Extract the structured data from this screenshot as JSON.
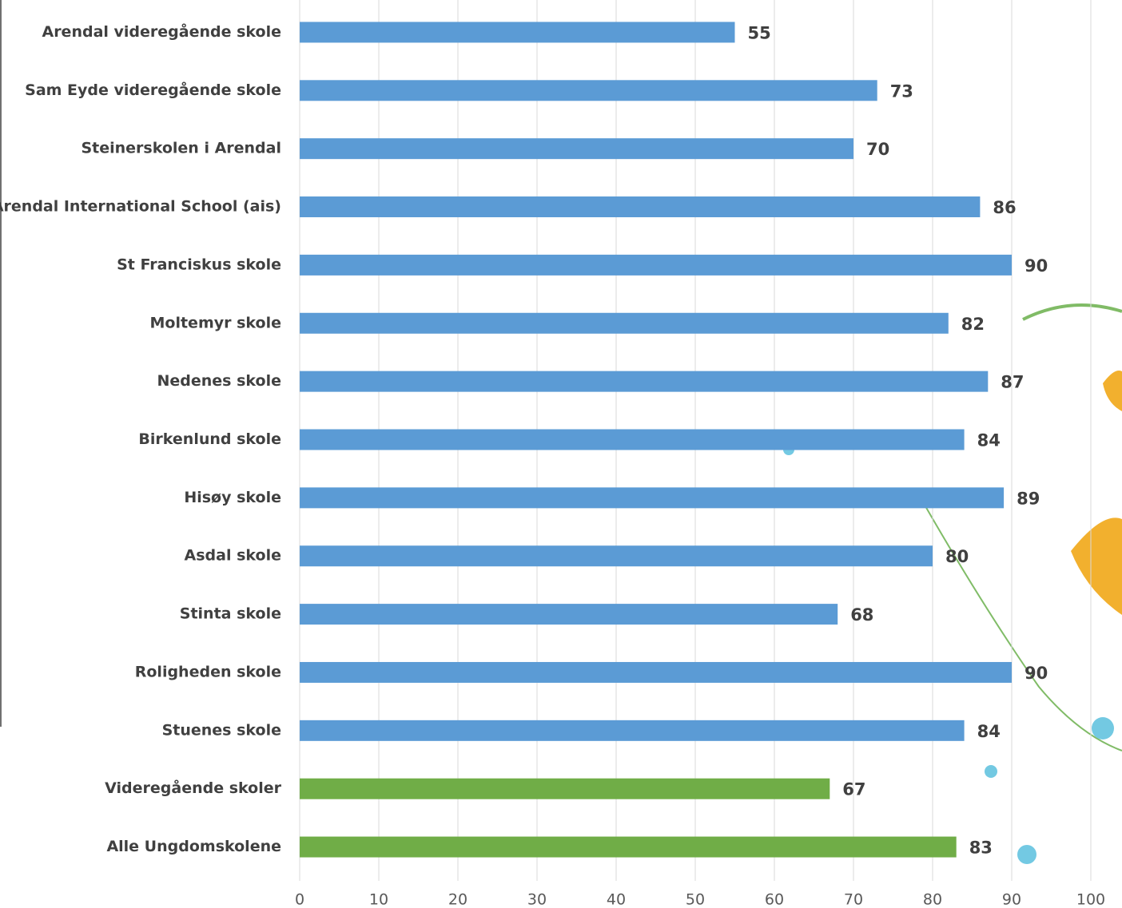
{
  "chart_data": {
    "type": "bar",
    "orientation": "horizontal",
    "categories": [
      "Arendal videregående skole",
      "Sam Eyde videregående skole",
      "Steinerskolen i Arendal",
      "Arendal International School (ais)",
      "St Franciskus skole",
      "Moltemyr skole",
      "Nedenes skole",
      "Birkenlund skole",
      "Hisøy skole",
      "Asdal skole",
      "Stinta skole",
      "Roligheden skole",
      "Stuenes skole",
      "Videregående skoler",
      "Alle Ungdomskolene"
    ],
    "values": [
      55,
      73,
      70,
      86,
      90,
      82,
      87,
      84,
      89,
      80,
      68,
      90,
      84,
      67,
      83
    ],
    "colors": [
      "#5b9bd5",
      "#5b9bd5",
      "#5b9bd5",
      "#5b9bd5",
      "#5b9bd5",
      "#5b9bd5",
      "#5b9bd5",
      "#5b9bd5",
      "#5b9bd5",
      "#5b9bd5",
      "#5b9bd5",
      "#5b9bd5",
      "#5b9bd5",
      "#70ad47",
      "#70ad47"
    ],
    "xlim": [
      0,
      100
    ],
    "xticks": [
      0,
      10,
      20,
      30,
      40,
      50,
      60,
      70,
      80,
      90,
      100
    ],
    "grid": true
  }
}
